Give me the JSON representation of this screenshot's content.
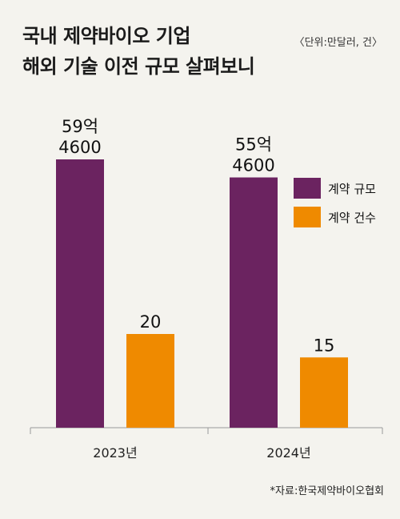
{
  "title_line1": "국내 제약바이오 기업",
  "title_line2": "해외 기술 이전 규모 살펴보니",
  "unit_note": "〈단위:만달러, 건〉",
  "source": "*자료:한국제약바이오협회",
  "colors": {
    "contract_value": "#6b2360",
    "contract_count": "#ef8a00",
    "axis": "#999999",
    "background": "#f4f3ee"
  },
  "chart_data": {
    "type": "bar",
    "categories": [
      "2023년",
      "2024년"
    ],
    "series": [
      {
        "name": "계약 규모",
        "values": [
          594600,
          554600
        ],
        "labels": [
          "59억\n4600",
          "55억\n4600"
        ]
      },
      {
        "name": "계약 건수",
        "values": [
          20,
          15
        ],
        "labels": [
          "20",
          "15"
        ]
      }
    ],
    "legend": "right",
    "grid": false,
    "note": "Two series drawn on independent scales"
  }
}
